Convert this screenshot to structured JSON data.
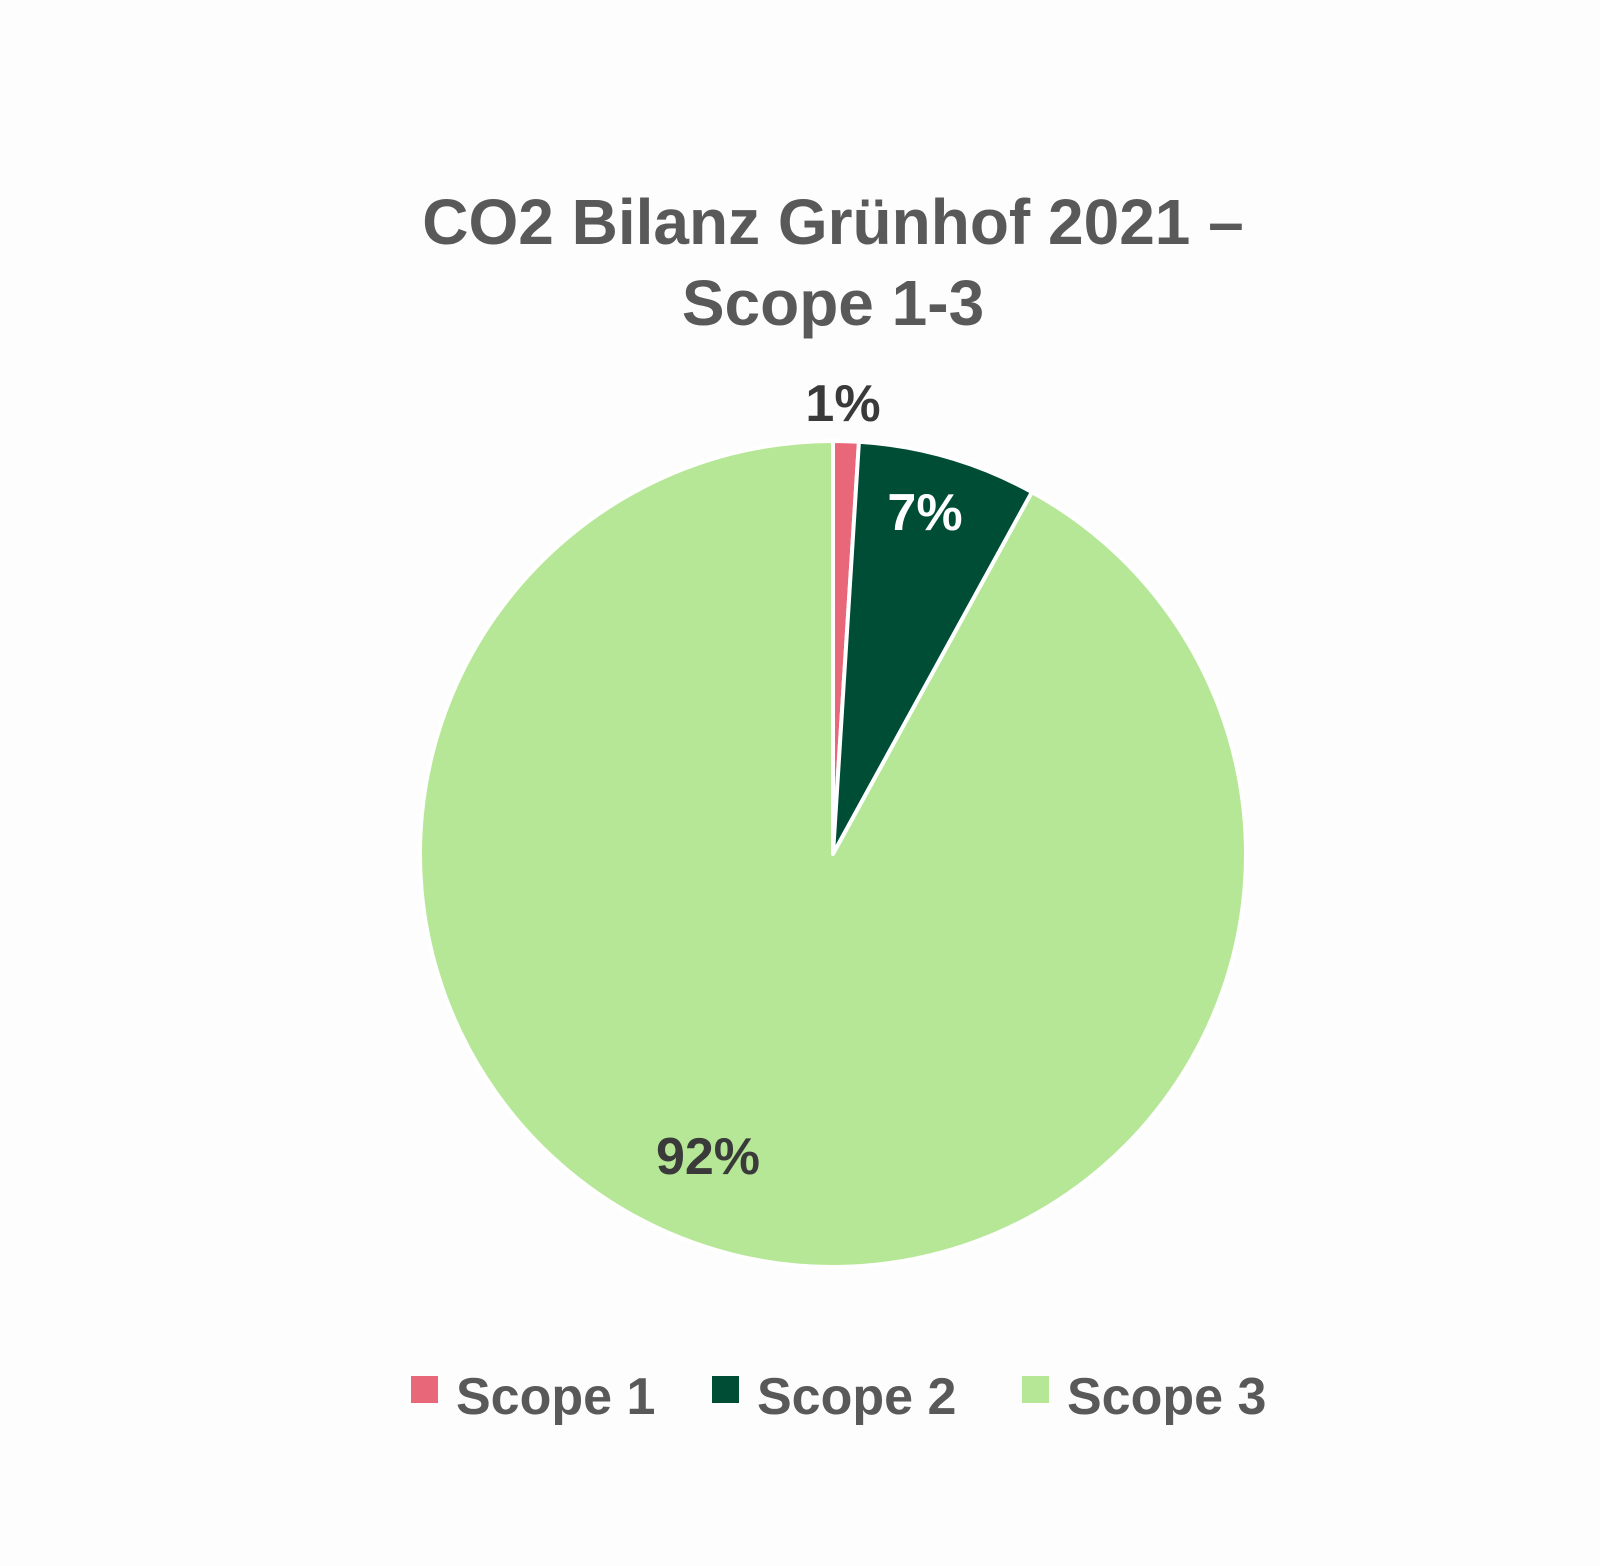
{
  "chart_data": {
    "type": "pie",
    "title": "CO2 Bilanz Grünhof 2021 –",
    "subtitle": "Scope 1-3",
    "slices": [
      {
        "name": "Scope 1",
        "value": 1,
        "label": "1%",
        "color": "#e8687a",
        "label_color": "#3a3a3a"
      },
      {
        "name": "Scope 2",
        "value": 7,
        "label": "7%",
        "color": "#004d36",
        "label_color": "#ffffff"
      },
      {
        "name": "Scope 3",
        "value": 92,
        "label": "92%",
        "color": "#b5e796",
        "label_color": "#3a3a3a"
      }
    ],
    "legend_position": "bottom"
  }
}
